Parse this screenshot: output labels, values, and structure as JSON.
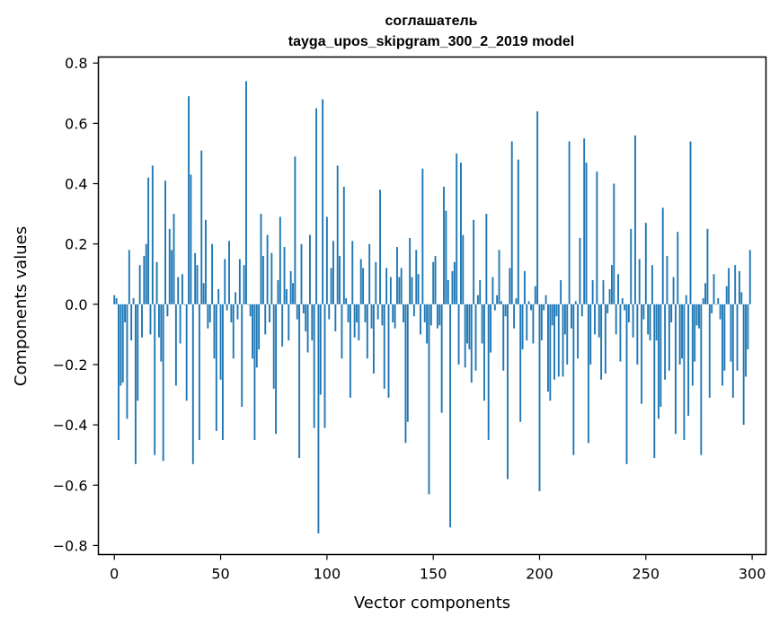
{
  "chart_data": {
    "type": "bar",
    "title": "соглашатель",
    "subtitle": "tayga_upos_skipgram_300_2_2019 model",
    "xlabel": "Vector components",
    "ylabel": "Components values",
    "xlim": [
      -7.5,
      306.5
    ],
    "ylim": [
      -0.83,
      0.82
    ],
    "xticks": [
      0,
      50,
      100,
      150,
      200,
      250,
      300
    ],
    "xtick_labels": [
      "0",
      "50",
      "100",
      "150",
      "200",
      "250",
      "300"
    ],
    "yticks": [
      -0.8,
      -0.6,
      -0.4,
      -0.2,
      0.0,
      0.2,
      0.4,
      0.6,
      0.8
    ],
    "ytick_labels": [
      "−0.8",
      "−0.6",
      "−0.4",
      "−0.2",
      "0.0",
      "0.2",
      "0.4",
      "0.6",
      "0.8"
    ],
    "color": "#1f77b4",
    "values": [
      0.03,
      0.02,
      -0.45,
      -0.27,
      -0.26,
      -0.06,
      -0.38,
      0.18,
      -0.12,
      0.02,
      -0.53,
      -0.32,
      0.13,
      -0.11,
      0.16,
      0.2,
      0.42,
      -0.1,
      0.46,
      -0.5,
      0.14,
      -0.11,
      -0.19,
      -0.52,
      0.41,
      -0.04,
      0.25,
      0.18,
      0.3,
      -0.27,
      0.09,
      -0.13,
      0.1,
      0.0,
      -0.32,
      0.69,
      0.43,
      -0.53,
      0.17,
      0.13,
      -0.45,
      0.51,
      0.07,
      0.28,
      -0.08,
      -0.06,
      0.2,
      -0.18,
      -0.42,
      0.05,
      -0.25,
      -0.45,
      0.15,
      -0.02,
      0.21,
      -0.06,
      -0.18,
      0.04,
      -0.05,
      0.15,
      -0.34,
      0.13,
      0.74,
      0.0,
      -0.04,
      -0.18,
      -0.45,
      -0.21,
      -0.15,
      0.3,
      0.16,
      -0.1,
      0.23,
      -0.06,
      0.17,
      -0.28,
      -0.43,
      0.08,
      0.29,
      -0.14,
      0.19,
      0.05,
      -0.12,
      0.11,
      0.07,
      0.49,
      -0.05,
      -0.51,
      0.2,
      -0.03,
      -0.09,
      -0.16,
      0.23,
      -0.12,
      -0.41,
      0.65,
      -0.76,
      -0.3,
      0.68,
      -0.41,
      0.29,
      -0.05,
      0.12,
      0.21,
      -0.09,
      0.46,
      0.16,
      -0.18,
      0.39,
      0.02,
      -0.06,
      -0.31,
      0.21,
      -0.11,
      -0.06,
      -0.12,
      0.15,
      0.12,
      -0.06,
      -0.18,
      0.2,
      -0.08,
      -0.23,
      0.14,
      -0.05,
      0.38,
      -0.07,
      -0.28,
      0.12,
      -0.31,
      0.09,
      -0.06,
      -0.08,
      0.19,
      0.09,
      0.12,
      -0.06,
      -0.46,
      -0.39,
      0.22,
      0.09,
      -0.04,
      0.18,
      0.1,
      -0.1,
      0.45,
      -0.06,
      -0.13,
      -0.63,
      -0.07,
      0.14,
      0.16,
      -0.08,
      -0.07,
      -0.36,
      0.39,
      0.31,
      0.08,
      -0.74,
      0.11,
      0.14,
      0.5,
      -0.2,
      0.47,
      0.23,
      -0.21,
      -0.13,
      -0.15,
      -0.26,
      0.28,
      -0.22,
      0.03,
      0.08,
      -0.13,
      -0.32,
      0.3,
      -0.45,
      -0.16,
      0.09,
      -0.02,
      0.03,
      0.18,
      0.01,
      -0.22,
      -0.04,
      -0.58,
      0.12,
      0.54,
      -0.08,
      0.02,
      0.48,
      -0.39,
      -0.15,
      0.11,
      -0.12,
      0.01,
      -0.02,
      -0.13,
      0.06,
      0.64,
      -0.62,
      -0.12,
      -0.02,
      0.03,
      -0.29,
      -0.32,
      -0.07,
      -0.25,
      -0.04,
      -0.24,
      0.08,
      -0.24,
      -0.1,
      -0.2,
      0.54,
      -0.08,
      -0.5,
      0.01,
      -0.18,
      0.22,
      -0.04,
      0.55,
      0.47,
      -0.46,
      -0.2,
      0.08,
      -0.1,
      0.44,
      -0.11,
      -0.25,
      0.08,
      -0.23,
      -0.03,
      0.05,
      0.13,
      0.4,
      -0.1,
      0.1,
      -0.19,
      0.02,
      -0.02,
      -0.53,
      -0.06,
      0.25,
      -0.11,
      0.56,
      -0.2,
      0.15,
      -0.33,
      -0.05,
      0.27,
      -0.1,
      -0.12,
      0.13,
      -0.51,
      -0.12,
      -0.38,
      -0.34,
      0.32,
      -0.25,
      0.16,
      -0.22,
      -0.06,
      0.09,
      -0.43,
      0.24,
      -0.2,
      -0.18,
      -0.45,
      0.03,
      -0.37,
      0.54,
      -0.27,
      -0.19,
      -0.07,
      -0.08,
      -0.5,
      0.02,
      0.07,
      0.25,
      -0.31,
      -0.03,
      0.1,
      0.0,
      0.02,
      -0.05,
      -0.27,
      -0.22,
      0.06,
      0.12,
      -0.19,
      -0.31,
      0.13,
      -0.22,
      0.11,
      0.04,
      -0.4,
      -0.24,
      -0.15,
      0.18
    ]
  }
}
